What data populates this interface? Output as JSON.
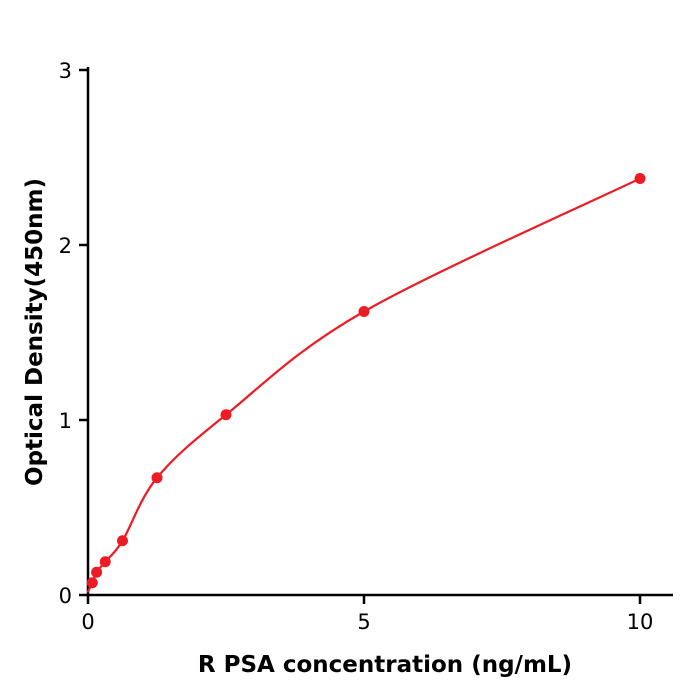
{
  "chart_data": {
    "type": "scatter",
    "title": "",
    "xlabel": "R  PSA concentration (ng/mL)",
    "ylabel": "Optical Density(450nm)",
    "x": [
      0.078,
      0.156,
      0.3125,
      0.625,
      1.25,
      2.5,
      5,
      10
    ],
    "y": [
      0.07,
      0.13,
      0.19,
      0.31,
      0.67,
      1.03,
      1.62,
      2.38
    ],
    "curve_origin": {
      "x": 0,
      "y": 0.02
    },
    "xlim": [
      0,
      10.6
    ],
    "ylim": [
      0,
      3
    ],
    "xticks": [
      0,
      5,
      10
    ],
    "yticks": [
      0,
      1,
      2,
      3
    ],
    "legend": "none",
    "grid": "off",
    "colors": {
      "point": "#ed1c24",
      "line": "#ed1c24",
      "axis": "#000000"
    }
  }
}
